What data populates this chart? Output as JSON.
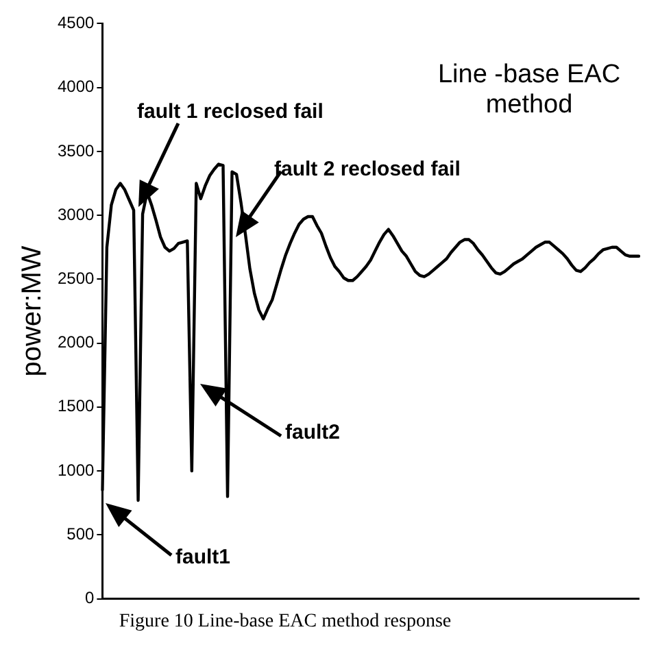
{
  "chart_data": {
    "type": "line",
    "title": "Line -base EAC method",
    "ylabel": "power:MW",
    "categories": [
      null,
      null,
      null,
      null,
      null,
      null,
      null,
      null,
      null,
      null,
      null,
      null,
      null,
      null,
      null,
      null,
      null,
      null,
      null,
      null,
      null,
      null,
      null,
      null,
      null,
      null,
      null,
      null,
      null,
      null,
      null,
      null,
      null,
      null,
      null,
      null,
      null,
      null,
      null,
      null,
      null,
      null,
      null,
      null,
      null,
      null,
      null,
      null,
      null,
      null,
      null,
      null,
      null,
      null,
      null,
      null,
      null,
      null,
      null,
      null,
      null,
      null,
      null,
      null,
      null,
      null,
      null,
      null,
      null,
      null,
      null,
      null,
      null,
      null,
      null,
      null,
      null,
      null,
      null,
      null,
      null,
      null,
      null,
      null,
      null,
      null,
      null,
      null,
      null,
      null,
      null,
      null,
      null,
      null,
      null,
      null,
      null,
      null,
      null,
      null,
      null,
      null,
      null,
      null,
      null,
      null,
      null,
      null,
      null,
      null,
      null,
      null,
      null,
      null,
      null,
      null,
      null,
      null,
      null,
      null,
      null
    ],
    "series": [
      {
        "color": "#000000",
        "values": [
          850,
          2750,
          3080,
          3200,
          3250,
          3200,
          3120,
          3040,
          770,
          3010,
          3180,
          3080,
          2960,
          2830,
          2750,
          2720,
          2740,
          2780,
          2790,
          2800,
          1000,
          3250,
          3130,
          3230,
          3310,
          3360,
          3400,
          3390,
          800,
          3340,
          3320,
          3100,
          2850,
          2580,
          2390,
          2260,
          2190,
          2270,
          2340,
          2460,
          2580,
          2690,
          2780,
          2860,
          2930,
          2970,
          2990,
          2990,
          2920,
          2860,
          2760,
          2670,
          2600,
          2560,
          2510,
          2490,
          2490,
          2520,
          2560,
          2600,
          2650,
          2720,
          2790,
          2850,
          2890,
          2840,
          2780,
          2720,
          2680,
          2620,
          2560,
          2530,
          2520,
          2540,
          2570,
          2600,
          2630,
          2660,
          2710,
          2750,
          2790,
          2810,
          2810,
          2780,
          2730,
          2690,
          2640,
          2590,
          2550,
          2540,
          2560,
          2590,
          2620,
          2640,
          2660,
          2690,
          2720,
          2750,
          2770,
          2790,
          2790,
          2760,
          2730,
          2700,
          2660,
          2610,
          2570,
          2560,
          2590,
          2630,
          2660,
          2700,
          2730,
          2740,
          2750,
          2750,
          2720,
          2690,
          2680,
          2680,
          2680
        ]
      }
    ],
    "ylim": [
      0,
      4500
    ],
    "yticks": [
      0,
      500,
      1000,
      1500,
      2000,
      2500,
      3000,
      3500,
      4000,
      4500
    ],
    "tick_labels": "y",
    "grid": false,
    "legend": false,
    "marker": "none",
    "line_style": "solid",
    "annotations": [
      "fault1",
      "fault2",
      "fault 1 reclosed fail",
      "fault 2 reclosed fail",
      "Figure 10 Line-base EAC method response"
    ]
  }
}
